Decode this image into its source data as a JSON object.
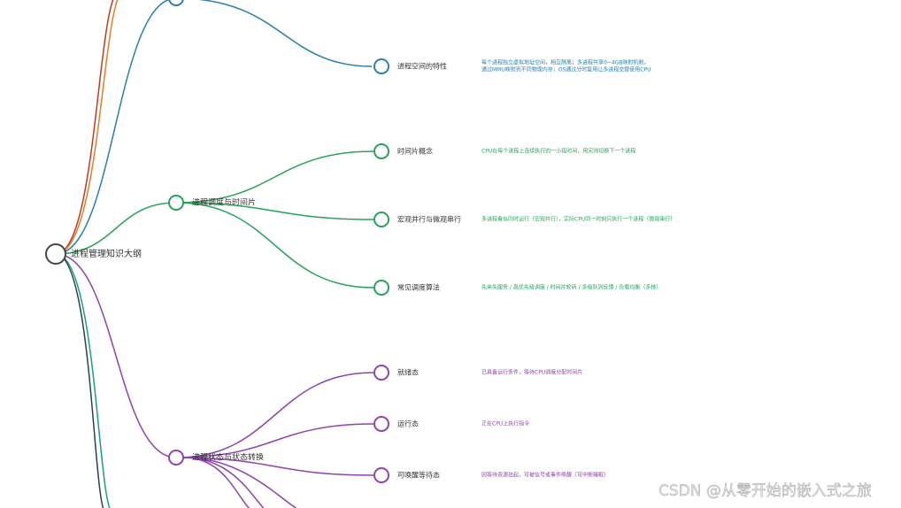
{
  "root": "进程管理知识大纲",
  "branches": [
    {
      "label": "进程调度与时间片",
      "color": "#27a35a",
      "children": [
        {
          "label": "时间片概念",
          "desc": [
            "CPU在每个进程上连续执行的一小段时间，用完则切换下一个进程"
          ]
        },
        {
          "label": "宏观并行与微观串行",
          "desc": [
            "多进程看似同时运行（宏观并行），实际CPU同一时刻只执行一个进程（微观串行）"
          ]
        },
        {
          "label": "常见调度算法",
          "desc": [
            "先来先服务 / 高优先级调度 / 时间片轮转 / 多级队列反馈 / 负载均衡（多核）"
          ]
        }
      ]
    },
    {
      "label": "进程状态与状态转换",
      "color": "#8e44ad",
      "children": [
        {
          "label": "就绪态",
          "desc": [
            "已具备运行条件，等待CPU调度分配时间片"
          ]
        },
        {
          "label": "运行态",
          "desc": [
            "正在CPU上执行指令"
          ]
        },
        {
          "label": "可唤醒等待态",
          "desc": [
            "因等待资源挂起，可被信号或事件唤醒（可中断睡眠）"
          ]
        }
      ]
    }
  ],
  "top_leaf": {
    "label": "进程空间的特性",
    "color": "#2a7fb0",
    "desc": [
      "每个进程独立虚拟地址空间，相互隔离；多进程共享0~4GB映射机制，",
      "通过MMU映射到不同物理内存；OS通过分时复用让多进程交替使用CPU"
    ]
  },
  "watermark": "CSDN @从零开始的嵌入式之旅"
}
